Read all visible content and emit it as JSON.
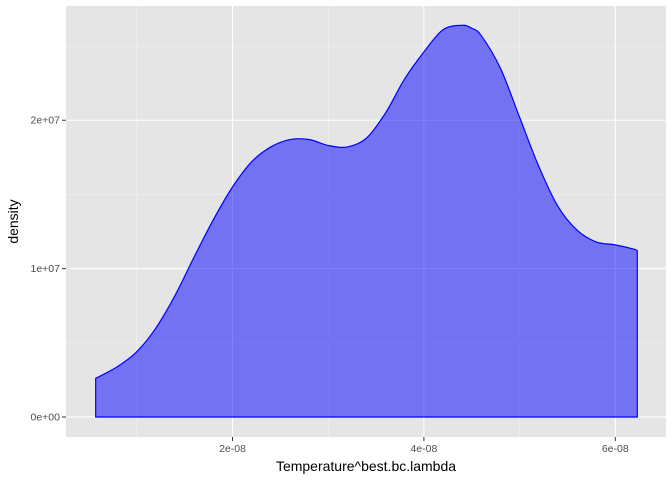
{
  "colors": {
    "panel_bg": "#E5E5E5",
    "grid_major": "#FFFFFF",
    "grid_minor": "#F2F2F2",
    "fill": "#0000FF",
    "fill_alpha": 0.5,
    "stroke": "#0000FF",
    "tick_label": "#4D4D4D",
    "tick_mark": "#333333"
  },
  "chart_data": {
    "type": "area",
    "xlabel": "Temperature^best.bc.lambda",
    "ylabel": "density",
    "xlim": [
      2.6e-09,
      6.53e-08
    ],
    "ylim": [
      -1350000,
      27700000
    ],
    "x_ticks": [
      {
        "value": 2e-08,
        "label": "2e-08"
      },
      {
        "value": 4e-08,
        "label": "4e-08"
      },
      {
        "value": 6e-08,
        "label": "6e-08"
      }
    ],
    "y_ticks": [
      {
        "value": 0,
        "label": "0e+00"
      },
      {
        "value": 10000000,
        "label": "1e+07"
      },
      {
        "value": 20000000,
        "label": "2e+07"
      }
    ],
    "x_minor": [
      1e-08,
      3e-08,
      5e-08
    ],
    "y_minor": [
      5000000,
      15000000,
      25000000
    ],
    "grid": true,
    "series": [
      {
        "x": [
          5.7e-09,
          8e-09,
          1e-08,
          1.2e-08,
          1.4e-08,
          1.6e-08,
          1.8e-08,
          2e-08,
          2.2e-08,
          2.4e-08,
          2.6e-08,
          2.8e-08,
          3e-08,
          3.2e-08,
          3.4e-08,
          3.6e-08,
          3.8e-08,
          4e-08,
          4.2e-08,
          4.4e-08,
          4.5e-08,
          4.6e-08,
          4.8e-08,
          5e-08,
          5.2e-08,
          5.4e-08,
          5.6e-08,
          5.8e-08,
          6e-08,
          6.2e-08,
          6.23e-08
        ],
        "y": [
          2600000,
          3400000,
          4400000,
          6000000,
          8200000,
          10800000,
          13300000,
          15500000,
          17200000,
          18200000,
          18700000,
          18700000,
          18300000,
          18200000,
          18800000,
          20500000,
          22800000,
          24600000,
          26100000,
          26400000,
          26200000,
          25700000,
          23500000,
          20200000,
          16900000,
          14200000,
          12600000,
          11800000,
          11600000,
          11300000,
          11200000
        ]
      }
    ]
  }
}
